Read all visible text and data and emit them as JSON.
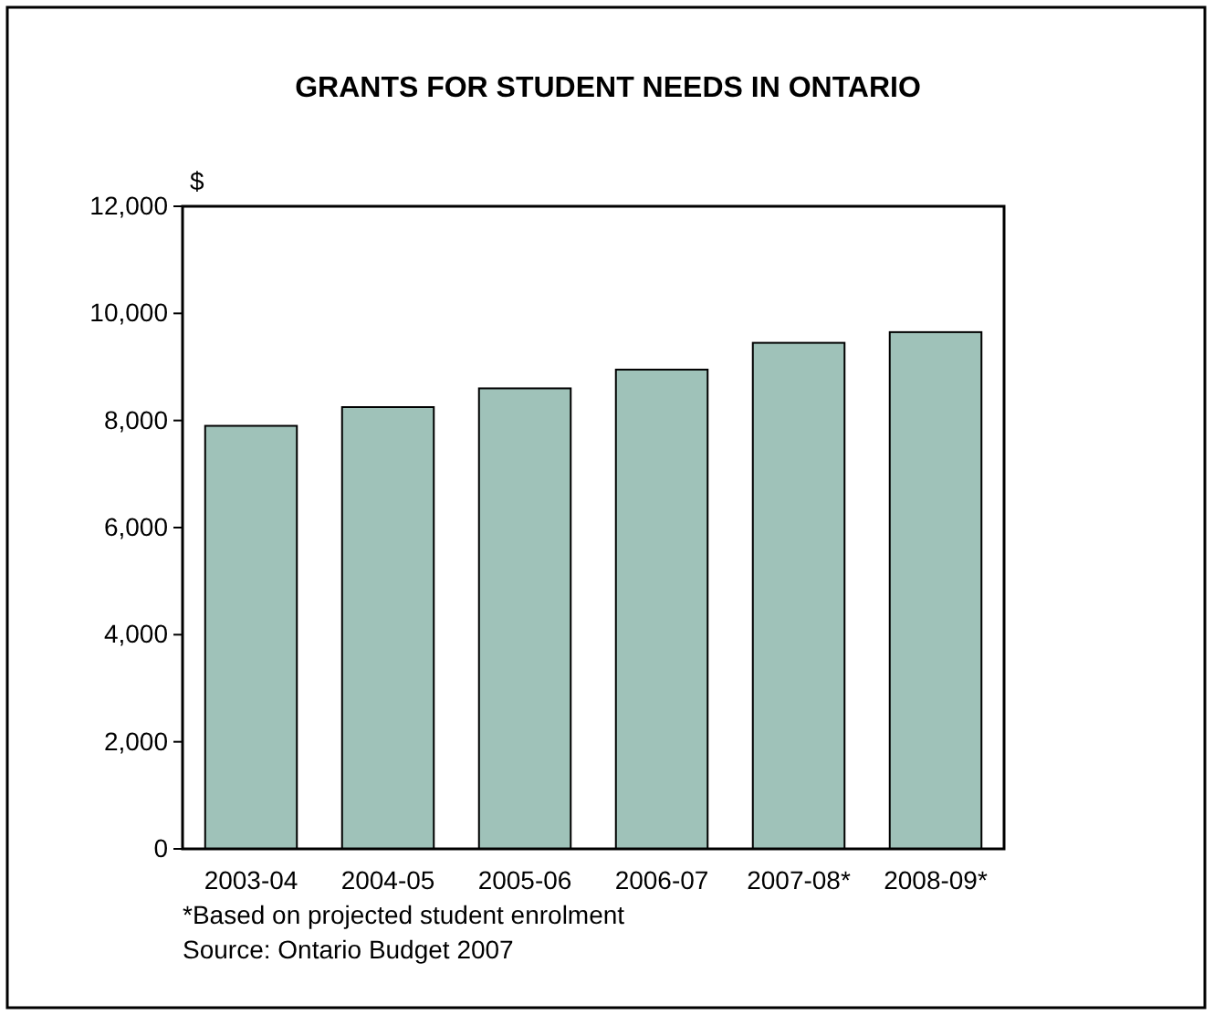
{
  "chart_data": {
    "type": "bar",
    "title": "GRANTS FOR STUDENT NEEDS IN ONTARIO",
    "ylabel": "$",
    "categories": [
      "2003-04",
      "2004-05",
      "2005-06",
      "2006-07",
      "2007-08*",
      "2008-09*"
    ],
    "values": [
      7900,
      8250,
      8600,
      8950,
      9450,
      9650
    ],
    "color": "#9fc2b9",
    "ylim": [
      0,
      12000
    ],
    "yticks": [
      {
        "value": 0,
        "label": "0"
      },
      {
        "value": 2000,
        "label": "2,000"
      },
      {
        "value": 4000,
        "label": "4,000"
      },
      {
        "value": 6000,
        "label": "6,000"
      },
      {
        "value": 8000,
        "label": "8,000"
      },
      {
        "value": 10000,
        "label": "10,000"
      },
      {
        "value": 12000,
        "label": "12,000"
      }
    ],
    "annotations": [
      "*Based on projected student enrolment",
      "Source: Ontario Budget 2007"
    ]
  }
}
